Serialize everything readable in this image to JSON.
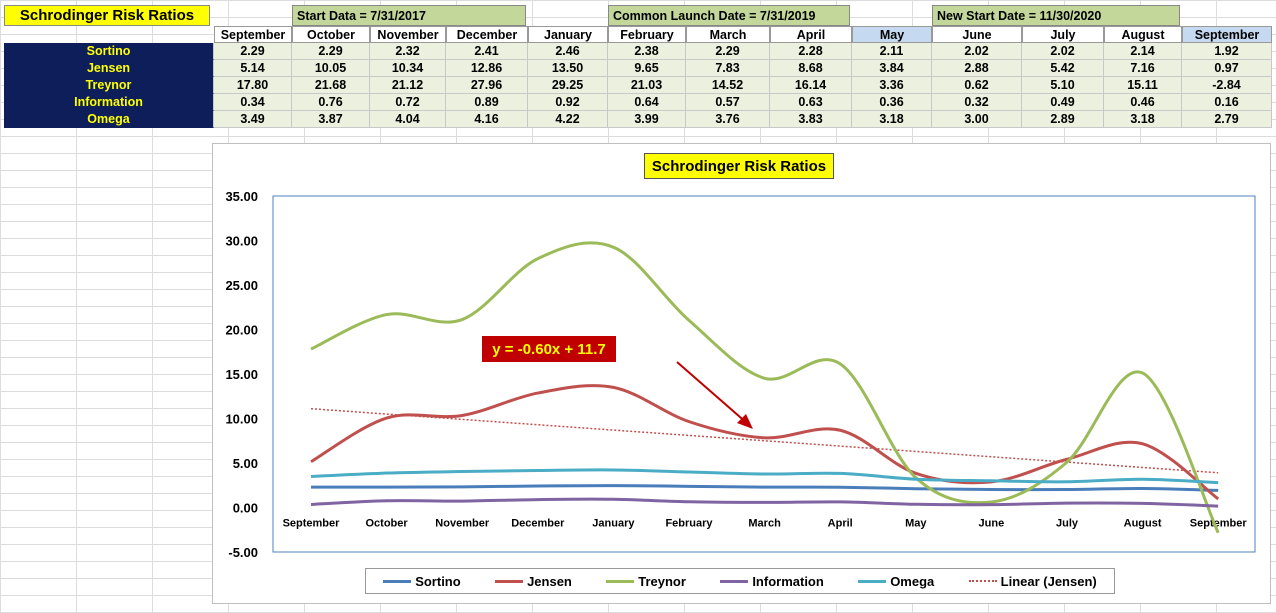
{
  "sheet": {
    "title": "Schrodinger Risk Ratios",
    "headers": [
      "Start Data = 7/31/2017",
      "Common Launch Date = 7/31/2019",
      "New Start Date = 11/30/2020"
    ],
    "months": [
      "September",
      "October",
      "November",
      "December",
      "January",
      "February",
      "March",
      "April",
      "May",
      "June",
      "July",
      "August",
      "September"
    ],
    "rows": [
      {
        "label": "Sortino",
        "values": [
          "2.29",
          "2.29",
          "2.32",
          "2.41",
          "2.46",
          "2.38",
          "2.29",
          "2.28",
          "2.11",
          "2.02",
          "2.02",
          "2.14",
          "1.92"
        ]
      },
      {
        "label": "Jensen",
        "values": [
          "5.14",
          "10.05",
          "10.34",
          "12.86",
          "13.50",
          "9.65",
          "7.83",
          "8.68",
          "3.84",
          "2.88",
          "5.42",
          "7.16",
          "0.97"
        ]
      },
      {
        "label": "Treynor",
        "values": [
          "17.80",
          "21.68",
          "21.12",
          "27.96",
          "29.25",
          "21.03",
          "14.52",
          "16.14",
          "3.36",
          "0.62",
          "5.10",
          "15.11",
          "-2.84"
        ]
      },
      {
        "label": "Information",
        "values": [
          "0.34",
          "0.76",
          "0.72",
          "0.89",
          "0.92",
          "0.64",
          "0.57",
          "0.63",
          "0.36",
          "0.32",
          "0.49",
          "0.46",
          "0.16"
        ]
      },
      {
        "label": "Omega",
        "values": [
          "3.49",
          "3.87",
          "4.04",
          "4.16",
          "4.22",
          "3.99",
          "3.76",
          "3.83",
          "3.18",
          "3.00",
          "2.89",
          "3.18",
          "2.79"
        ]
      }
    ]
  },
  "chart_data": {
    "type": "line",
    "title": "Schrodinger Risk Ratios",
    "categories": [
      "September",
      "October",
      "November",
      "December",
      "January",
      "February",
      "March",
      "April",
      "May",
      "June",
      "July",
      "August",
      "September"
    ],
    "ylim": [
      -5,
      35
    ],
    "yticks": [
      "35.00",
      "30.00",
      "25.00",
      "20.00",
      "15.00",
      "10.00",
      "5.00",
      "0.00",
      "-5.00"
    ],
    "ytick_values": [
      35,
      30,
      25,
      20,
      15,
      10,
      5,
      0,
      -5
    ],
    "series": [
      {
        "name": "Sortino",
        "color": "#4a7ebb",
        "values": [
          2.29,
          2.29,
          2.32,
          2.41,
          2.46,
          2.38,
          2.29,
          2.28,
          2.11,
          2.02,
          2.02,
          2.14,
          1.92
        ]
      },
      {
        "name": "Jensen",
        "color": "#c0504d",
        "values": [
          5.14,
          10.05,
          10.34,
          12.86,
          13.5,
          9.65,
          7.83,
          8.68,
          3.84,
          2.88,
          5.42,
          7.16,
          0.97
        ]
      },
      {
        "name": "Treynor",
        "color": "#9bbb59",
        "values": [
          17.8,
          21.68,
          21.12,
          27.96,
          29.25,
          21.03,
          14.52,
          16.14,
          3.36,
          0.62,
          5.1,
          15.11,
          -2.84
        ]
      },
      {
        "name": "Information",
        "color": "#8064a2",
        "values": [
          0.34,
          0.76,
          0.72,
          0.89,
          0.92,
          0.64,
          0.57,
          0.63,
          0.36,
          0.32,
          0.49,
          0.46,
          0.16
        ]
      },
      {
        "name": "Omega",
        "color": "#4bacc6",
        "values": [
          3.49,
          3.87,
          4.04,
          4.16,
          4.22,
          3.99,
          3.76,
          3.83,
          3.18,
          3.0,
          2.89,
          3.18,
          2.79
        ]
      }
    ],
    "trendline": {
      "name": "Linear (Jensen)",
      "color": "#c0504d",
      "equation": "y = -0.60x + 11.7",
      "slope": -0.6,
      "intercept": 11.7
    },
    "legend_position": "bottom",
    "grid": false
  }
}
